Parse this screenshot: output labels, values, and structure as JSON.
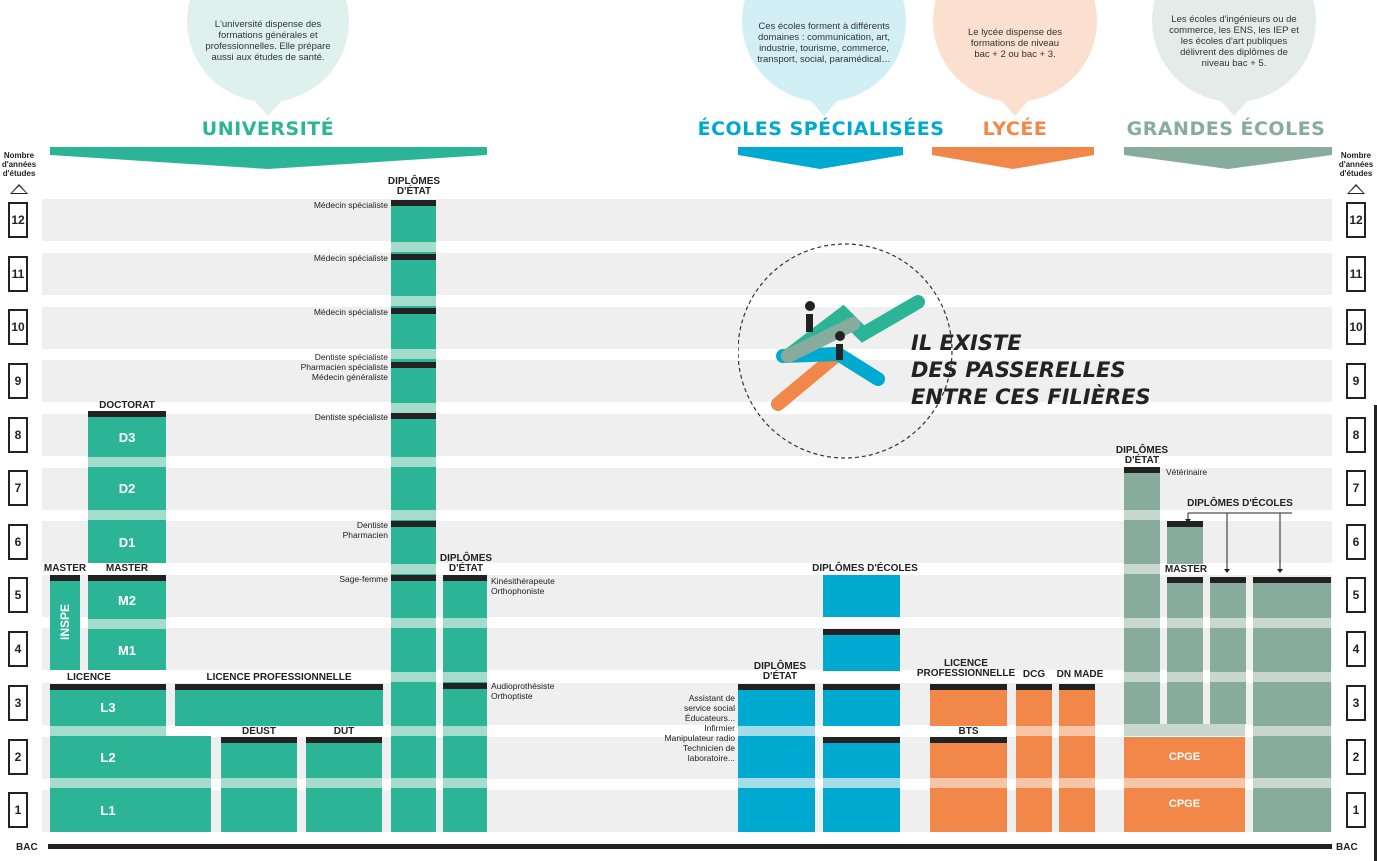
{
  "axis": {
    "title": [
      "Nombre",
      "d'années",
      "d'études"
    ],
    "years": [
      "12",
      "11",
      "10",
      "9",
      "8",
      "7",
      "6",
      "5",
      "4",
      "3",
      "2",
      "1"
    ],
    "bac": "BAC"
  },
  "bubbles": {
    "universite": "L'université dispense des formations générales et professionnelles. Elle prépare aussi aux études de santé.",
    "ecoles": "Ces écoles forment à différents domaines : communication, art, industrie, tourisme, commerce, transport, social, paramédical…",
    "lycee": "Le lycée dispense des formations de niveau bac + 2 ou bac + 3.",
    "grandes": "Les écoles d'ingénieurs ou de commerce, les ENS, les IEP et les écoles d'art publiques délivrent des diplômes de niveau bac + 5."
  },
  "titles": {
    "universite": "UNIVERSITÉ",
    "ecoles": "ÉCOLES SPÉCIALISÉES",
    "lycee": "LYCÉE",
    "grandes": "GRANDES ÉCOLES"
  },
  "colors": {
    "universite": "#2bb596",
    "ecoles": "#00a9cf",
    "lycee": "#f2874a",
    "grandes": "#87ab9c",
    "bubble_uni": "#dff1ec",
    "bubble_eco": "#d3eff6",
    "bubble_lyc": "#fbe0d0",
    "bubble_gra": "#e3ece8"
  },
  "labels": {
    "doctorat": "DOCTORAT",
    "master": "MASTER",
    "master2": "MASTER",
    "inspe": "INSPE",
    "licence": "LICENCE",
    "licence_pro": "LICENCE PROFESSIONNELLE",
    "deust": "DEUST",
    "dut": "DUT",
    "diplomes_etat": "DIPLÔMES D'ÉTAT",
    "diplomes_etat2": "DIPLÔMES D'ÉTAT",
    "diplomes_etat3": "DIPLÔMES D'ÉTAT",
    "diplomes_etat4": "DIPLÔMES D'ÉTAT",
    "diplomes_ecoles": "DIPLÔMES D'ÉCOLES",
    "diplomes_ecoles2": "DIPLÔMES D'ÉCOLES",
    "licence_pro_lycee": "LICENCE PROFESSIONNELLE",
    "dcg": "DCG",
    "dn_made": "DN MADE",
    "bts": "BTS",
    "master_ge": "MASTER",
    "cpge": "CPGE",
    "cpge2": "CPGE"
  },
  "segments": {
    "d3": "D3",
    "d2": "D2",
    "d1": "D1",
    "m2": "M2",
    "m1": "M1",
    "l3": "L3",
    "l2": "L2",
    "l1": "L1"
  },
  "notes": {
    "medecin12": "Médecin spécialiste",
    "medecin11": "Médecin spécialiste",
    "medecin10": "Médecin spécialiste",
    "annee9": [
      "Dentiste spécialiste",
      "Pharmacien spécialiste",
      "Médecin généraliste"
    ],
    "dentiste8": "Dentiste spécialiste",
    "annee6": [
      "Dentiste",
      "Pharmacien"
    ],
    "sagefemme": "Sage-femme",
    "kine": [
      "Kinésithérapeute",
      "Orthophoniste"
    ],
    "audio": [
      "Audioprothésiste",
      "Orthoptiste"
    ],
    "eco3": [
      "Assistant de",
      "service social",
      "Éducateurs...",
      "Infirmier",
      "Manipulateur radio",
      "Technicien de",
      "laboratoire..."
    ],
    "veterinaire": "Vétérinaire"
  },
  "passerelles": [
    "IL EXISTE",
    "DES PASSERELLES",
    "ENTRE CES FILIÈRES"
  ]
}
